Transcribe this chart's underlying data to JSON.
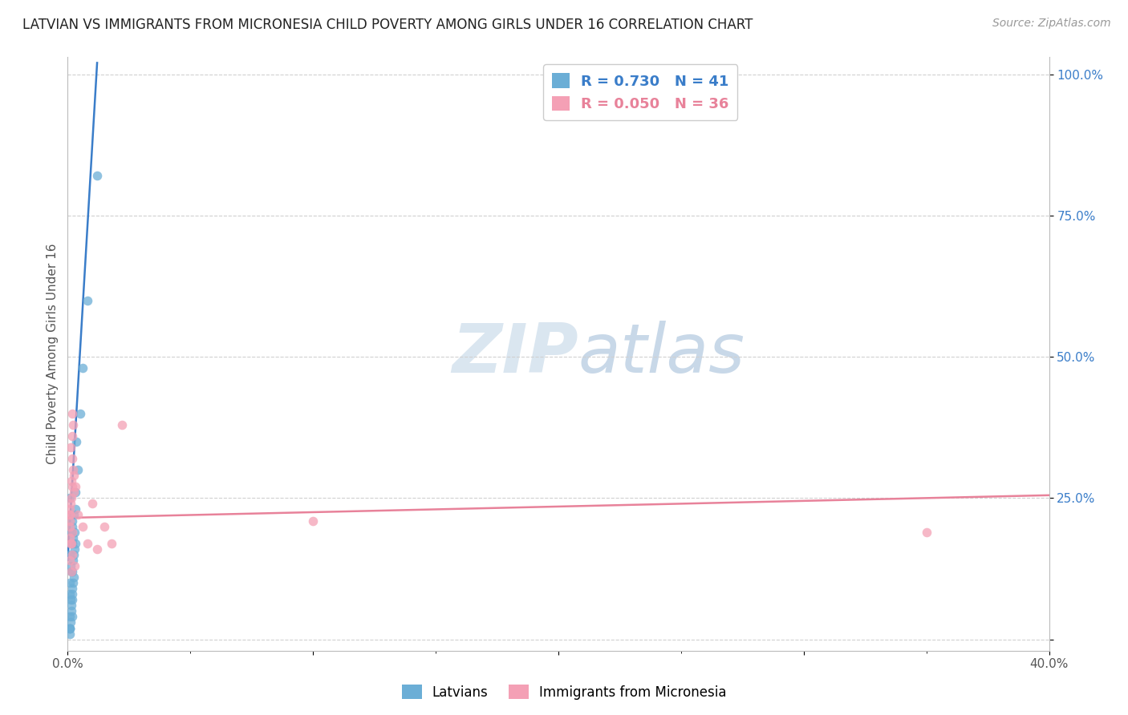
{
  "title": "LATVIAN VS IMMIGRANTS FROM MICRONESIA CHILD POVERTY AMONG GIRLS UNDER 16 CORRELATION CHART",
  "source": "Source: ZipAtlas.com",
  "ylabel": "Child Poverty Among Girls Under 16",
  "xlim": [
    0.0,
    0.4
  ],
  "ylim": [
    -0.02,
    1.03
  ],
  "watermark_zip": "ZIP",
  "watermark_atlas": "atlas",
  "legend_entries": [
    {
      "label": "Latvians",
      "color": "#6baed6",
      "R": 0.73,
      "N": 41
    },
    {
      "label": "Immigrants from Micronesia",
      "color": "#f4a0b5",
      "R": 0.05,
      "N": 36
    }
  ],
  "latvians_x": [
    0.0008,
    0.001,
    0.0012,
    0.0008,
    0.001,
    0.0015,
    0.0012,
    0.0018,
    0.001,
    0.0008,
    0.0015,
    0.002,
    0.0018,
    0.0022,
    0.0015,
    0.0012,
    0.002,
    0.0025,
    0.0018,
    0.001,
    0.0022,
    0.0028,
    0.002,
    0.0015,
    0.0025,
    0.003,
    0.0022,
    0.0018,
    0.0028,
    0.0008,
    0.002,
    0.0032,
    0.0025,
    0.001,
    0.003,
    0.004,
    0.0035,
    0.005,
    0.006,
    0.008,
    0.012
  ],
  "latvians_y": [
    0.02,
    0.01,
    0.03,
    0.04,
    0.02,
    0.05,
    0.07,
    0.04,
    0.08,
    0.1,
    0.06,
    0.07,
    0.08,
    0.1,
    0.12,
    0.13,
    0.09,
    0.11,
    0.12,
    0.15,
    0.14,
    0.16,
    0.17,
    0.19,
    0.15,
    0.17,
    0.18,
    0.2,
    0.19,
    0.02,
    0.21,
    0.23,
    0.22,
    0.25,
    0.26,
    0.3,
    0.35,
    0.4,
    0.48,
    0.6,
    0.82
  ],
  "micronesia_x": [
    0.0008,
    0.001,
    0.0012,
    0.0008,
    0.001,
    0.0015,
    0.0012,
    0.0018,
    0.001,
    0.0008,
    0.0015,
    0.002,
    0.0018,
    0.0022,
    0.0015,
    0.0012,
    0.002,
    0.0025,
    0.0018,
    0.001,
    0.0022,
    0.0028,
    0.002,
    0.0015,
    0.0025,
    0.003,
    0.004,
    0.006,
    0.008,
    0.01,
    0.012,
    0.015,
    0.018,
    0.022,
    0.1,
    0.35
  ],
  "micronesia_y": [
    0.2,
    0.18,
    0.17,
    0.22,
    0.21,
    0.17,
    0.24,
    0.19,
    0.22,
    0.23,
    0.25,
    0.15,
    0.27,
    0.3,
    0.28,
    0.34,
    0.36,
    0.29,
    0.4,
    0.14,
    0.38,
    0.13,
    0.32,
    0.12,
    0.26,
    0.27,
    0.22,
    0.2,
    0.17,
    0.24,
    0.16,
    0.2,
    0.17,
    0.38,
    0.21,
    0.19
  ],
  "blue_line_x": [
    0.0,
    0.012
  ],
  "blue_line_y": [
    0.14,
    1.02
  ],
  "pink_line_x": [
    0.0,
    0.4
  ],
  "pink_line_y": [
    0.215,
    0.255
  ],
  "blue_line_color": "#3a7dc9",
  "pink_line_color": "#e8829a",
  "blue_dot_color": "#6baed6",
  "pink_dot_color": "#f4a0b5",
  "dot_size": 70,
  "dot_alpha": 0.75,
  "grid_color": "#d0d0d0",
  "background_color": "#ffffff",
  "watermark_color": "#dae6f0",
  "title_fontsize": 12,
  "source_fontsize": 10,
  "tick_fontsize": 11,
  "ylabel_fontsize": 11
}
